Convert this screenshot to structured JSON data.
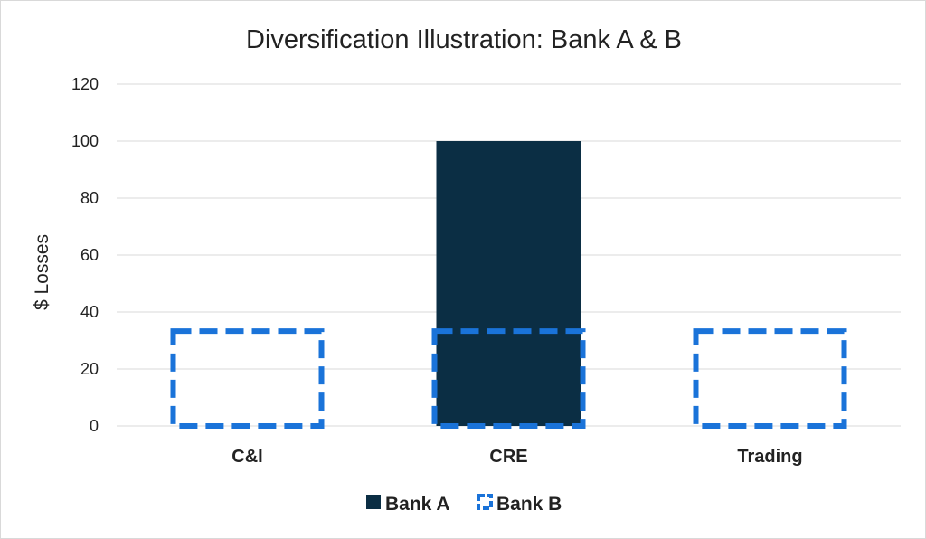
{
  "chart_data": {
    "type": "bar",
    "title": "Diversification Illustration: Bank A & B",
    "xlabel": "",
    "ylabel": "$ Losses",
    "categories": [
      "C&I",
      "CRE",
      "Trading"
    ],
    "series": [
      {
        "name": "Bank A",
        "values": [
          0,
          100,
          0
        ],
        "color": "#0b2e44",
        "style": "solid"
      },
      {
        "name": "Bank B",
        "values": [
          33.3,
          33.3,
          33.3
        ],
        "color": "#1a73d9",
        "style": "dashed-outline"
      }
    ],
    "ylim": [
      0,
      120
    ],
    "yticks": [
      0,
      20,
      40,
      60,
      80,
      100,
      120
    ],
    "grid": true,
    "legend_position": "bottom"
  }
}
